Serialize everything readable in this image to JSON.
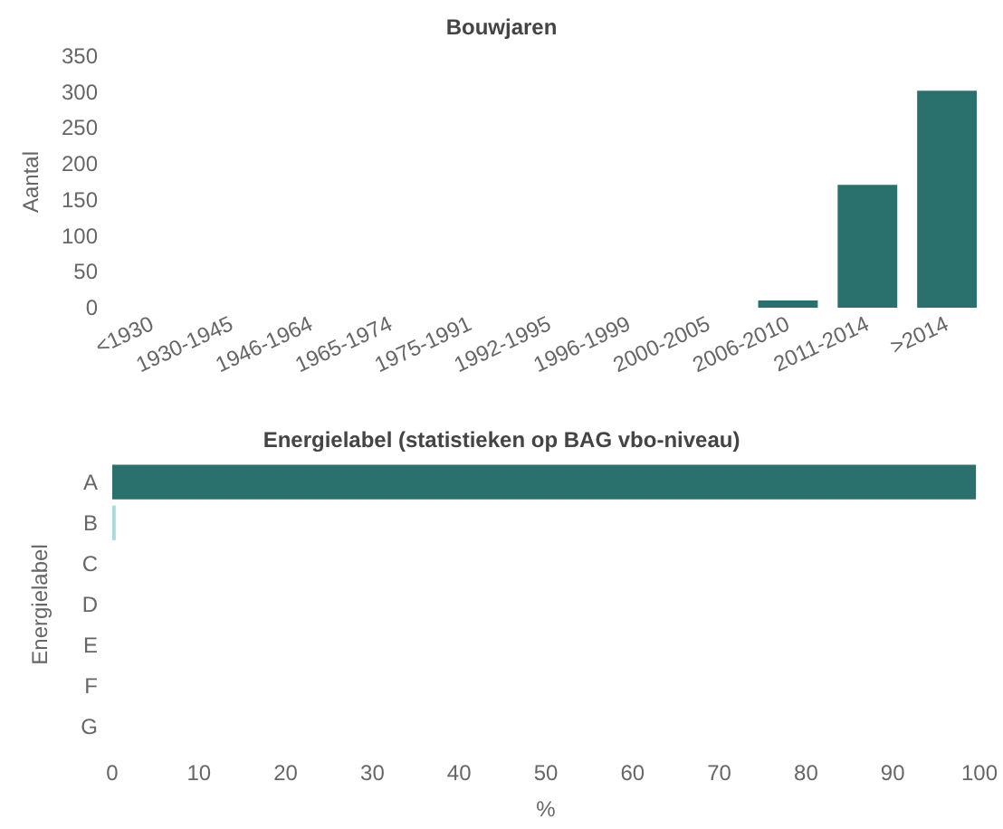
{
  "chart_data": [
    {
      "type": "bar",
      "title": "Bouwjaren",
      "ylabel": "Aantal",
      "categories": [
        "<1930",
        "1930-1945",
        "1946-1964",
        "1965-1974",
        "1975-1991",
        "1992-1995",
        "1996-1999",
        "2000-2005",
        "2006-2010",
        "2011-2014",
        ">2014"
      ],
      "values": [
        0,
        0,
        0,
        0,
        0,
        0,
        0,
        0,
        10,
        171,
        302
      ],
      "color": "#2a716d",
      "ylim": [
        0,
        350
      ],
      "yticks": [
        0,
        50,
        100,
        150,
        200,
        250,
        300,
        350
      ],
      "grid": false
    },
    {
      "type": "bar",
      "orientation": "horizontal",
      "title": "Energielabel (statistieken op BAG vbo-niveau)",
      "ylabel": "Energielabel",
      "xlabel": "%",
      "categories": [
        "A",
        "B",
        "C",
        "D",
        "E",
        "F",
        "G"
      ],
      "values": [
        99.6,
        0.4,
        0,
        0,
        0,
        0,
        0
      ],
      "colors": [
        "#2a716d",
        "#a8dcd9",
        "#2a716d",
        "#2a716d",
        "#2a716d",
        "#2a716d",
        "#2a716d"
      ],
      "xlim": [
        0,
        100
      ],
      "xticks": [
        0,
        10,
        20,
        30,
        40,
        50,
        60,
        70,
        80,
        90,
        100
      ],
      "grid": false
    }
  ]
}
